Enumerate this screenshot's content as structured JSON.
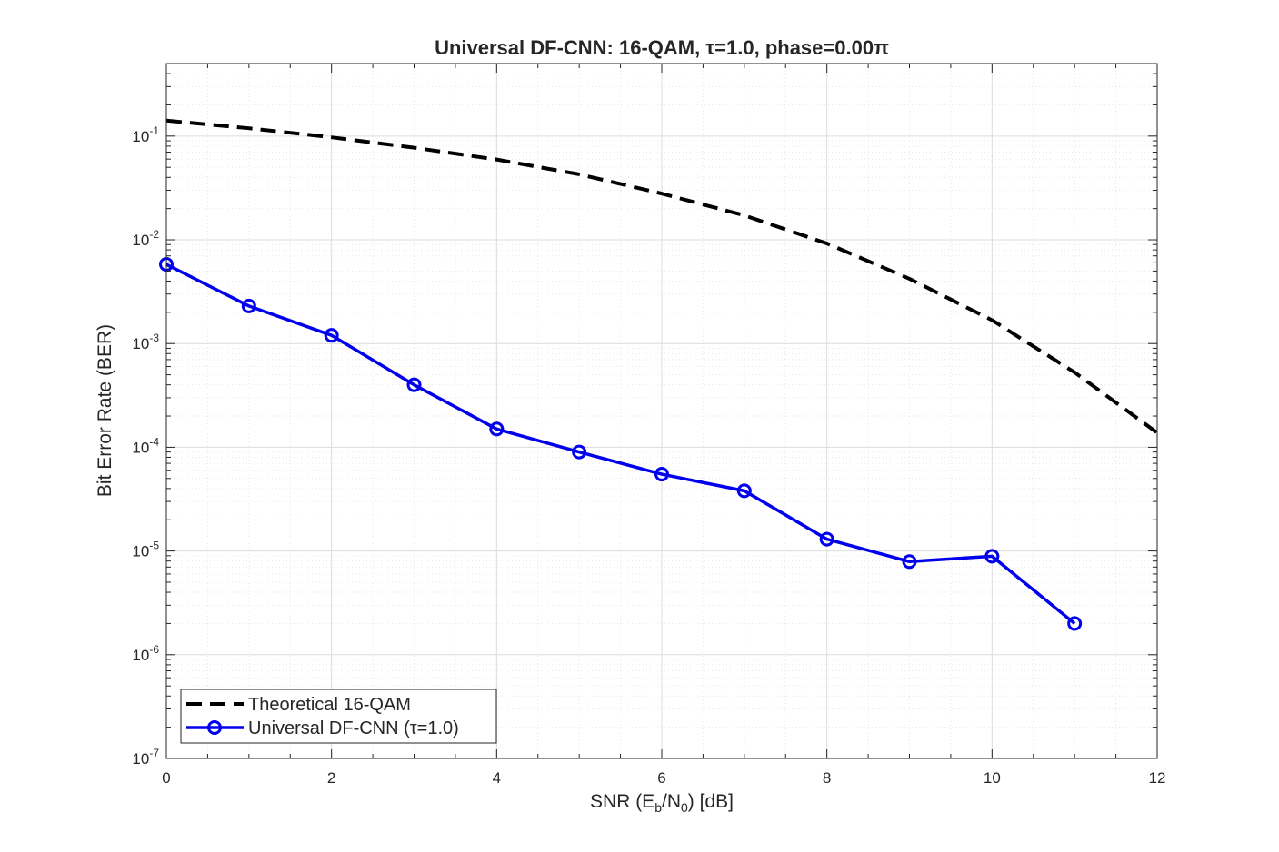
{
  "chart_data": {
    "type": "line",
    "title": "Universal DF-CNN: 16-QAM, τ=1.0, phase=0.00π",
    "xlabel": {
      "prefix": "SNR  (E",
      "sub1": "b",
      "mid": "/N",
      "sub2": "0",
      "suffix": ")  [dB]"
    },
    "ylabel": "Bit Error Rate (BER)",
    "xlim": [
      0,
      12
    ],
    "ylim": [
      1e-07,
      0.5
    ],
    "yscale": "log",
    "grid": true,
    "minor_grid": true,
    "legend_position": "bottom-left",
    "x_ticks": [
      {
        "value": 0,
        "label": "0"
      },
      {
        "value": 2,
        "label": "2"
      },
      {
        "value": 4,
        "label": "4"
      },
      {
        "value": 6,
        "label": "6"
      },
      {
        "value": 8,
        "label": "8"
      },
      {
        "value": 10,
        "label": "10"
      },
      {
        "value": 12,
        "label": "12"
      }
    ],
    "y_ticks": [
      {
        "value": 0.1,
        "base": "10",
        "exp": "-1"
      },
      {
        "value": 0.01,
        "base": "10",
        "exp": "-2"
      },
      {
        "value": 0.001,
        "base": "10",
        "exp": "-3"
      },
      {
        "value": 0.0001,
        "base": "10",
        "exp": "-4"
      },
      {
        "value": 1e-05,
        "base": "10",
        "exp": "-5"
      },
      {
        "value": 1e-06,
        "base": "10",
        "exp": "-6"
      },
      {
        "value": 1e-07,
        "base": "10",
        "exp": "-7"
      }
    ],
    "series": [
      {
        "name": "Theoretical 16-QAM",
        "color": "#000000",
        "style": "dashed",
        "marker": "none",
        "x": [
          0,
          1,
          2,
          3,
          4,
          5,
          6,
          7,
          8,
          9,
          10,
          11,
          12
        ],
        "y": [
          0.141,
          0.119,
          0.0973,
          0.0772,
          0.0594,
          0.0428,
          0.0279,
          0.0172,
          0.00922,
          0.00421,
          0.00168,
          0.000527,
          0.000138
        ]
      },
      {
        "name": "Universal DF-CNN (τ=1.0)",
        "color": "#0000ee",
        "style": "solid",
        "marker": "circle",
        "x": [
          0,
          1,
          2,
          3,
          4,
          5,
          6,
          7,
          8,
          9,
          10,
          11
        ],
        "y": [
          0.0058,
          0.0023,
          0.0012,
          0.0004,
          0.00015,
          9e-05,
          5.5e-05,
          3.8e-05,
          1.3e-05,
          7.9e-06,
          8.9e-06,
          2e-06
        ]
      }
    ]
  }
}
